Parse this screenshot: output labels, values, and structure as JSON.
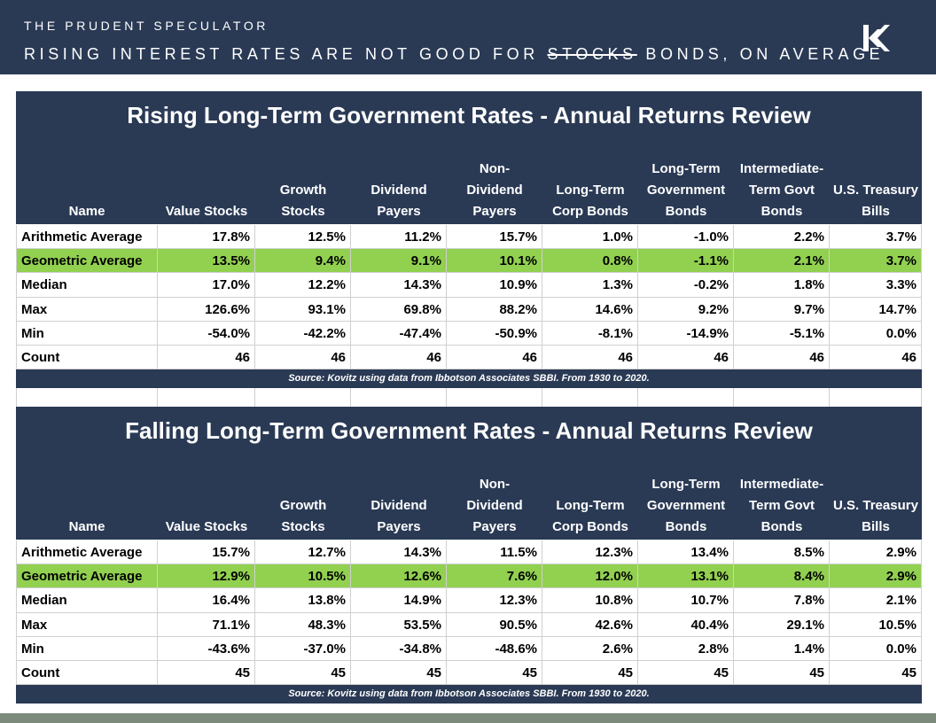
{
  "header": {
    "brand": "THE PRUDENT SPECULATOR",
    "title": {
      "before": "RISING INTEREST RATES ARE NOT GOOD FOR",
      "struck": "STOCKS",
      "after": "BONDS, ON AVERAGE"
    }
  },
  "tables": [
    {
      "title": "Rising Long-Term Government Rates - Annual Returns Review",
      "columns": [
        [
          "Name"
        ],
        [
          "Value Stocks"
        ],
        [
          "Growth",
          "Stocks"
        ],
        [
          "Dividend",
          "Payers"
        ],
        [
          "Non-",
          "Dividend",
          "Payers"
        ],
        [
          "Long-Term",
          "Corp Bonds"
        ],
        [
          "Long-Term",
          "Government",
          "Bonds"
        ],
        [
          "Intermediate-",
          "Term Govt",
          "Bonds"
        ],
        [
          "U.S. Treasury",
          "Bills"
        ]
      ],
      "rows": [
        [
          "Arithmetic Average",
          "17.8%",
          "12.5%",
          "11.2%",
          "15.7%",
          "1.0%",
          "-1.0%",
          "2.2%",
          "3.7%"
        ],
        [
          "Geometric Average",
          "13.5%",
          "9.4%",
          "9.1%",
          "10.1%",
          "0.8%",
          "-1.1%",
          "2.1%",
          "3.7%"
        ],
        [
          "Median",
          "17.0%",
          "12.2%",
          "14.3%",
          "10.9%",
          "1.3%",
          "-0.2%",
          "1.8%",
          "3.3%"
        ],
        [
          "Max",
          "126.6%",
          "93.1%",
          "69.8%",
          "88.2%",
          "14.6%",
          "9.2%",
          "9.7%",
          "14.7%"
        ],
        [
          "Min",
          "-54.0%",
          "-42.2%",
          "-47.4%",
          "-50.9%",
          "-8.1%",
          "-14.9%",
          "-5.1%",
          "0.0%"
        ],
        [
          "Count",
          "46",
          "46",
          "46",
          "46",
          "46",
          "46",
          "46",
          "46"
        ]
      ],
      "source": "Source: Kovitz using data from Ibbotson Associates SBBI. From 1930 to 2020."
    },
    {
      "title": "Falling Long-Term Government Rates - Annual Returns Review",
      "columns": [
        [
          "Name"
        ],
        [
          "Value Stocks"
        ],
        [
          "Growth",
          "Stocks"
        ],
        [
          "Dividend",
          "Payers"
        ],
        [
          "Non-",
          "Dividend",
          "Payers"
        ],
        [
          "Long-Term",
          "Corp Bonds"
        ],
        [
          "Long-Term",
          "Government",
          "Bonds"
        ],
        [
          "Intermediate-",
          "Term Govt",
          "Bonds"
        ],
        [
          "U.S. Treasury",
          "Bills"
        ]
      ],
      "rows": [
        [
          "Arithmetic Average",
          "15.7%",
          "12.7%",
          "14.3%",
          "11.5%",
          "12.3%",
          "13.4%",
          "8.5%",
          "2.9%"
        ],
        [
          "Geometric Average",
          "12.9%",
          "10.5%",
          "12.6%",
          "7.6%",
          "12.0%",
          "13.1%",
          "8.4%",
          "2.9%"
        ],
        [
          "Median",
          "16.4%",
          "13.8%",
          "14.9%",
          "12.3%",
          "10.8%",
          "10.7%",
          "7.8%",
          "2.1%"
        ],
        [
          "Max",
          "71.1%",
          "48.3%",
          "53.5%",
          "90.5%",
          "42.6%",
          "40.4%",
          "29.1%",
          "10.5%"
        ],
        [
          "Min",
          "-43.6%",
          "-37.0%",
          "-34.8%",
          "-48.6%",
          "2.6%",
          "2.8%",
          "1.4%",
          "0.0%"
        ],
        [
          "Count",
          "45",
          "45",
          "45",
          "45",
          "45",
          "45",
          "45",
          "45"
        ]
      ],
      "source": "Source: Kovitz using data from Ibbotson Associates SBBI. From 1930 to 2020."
    }
  ]
}
